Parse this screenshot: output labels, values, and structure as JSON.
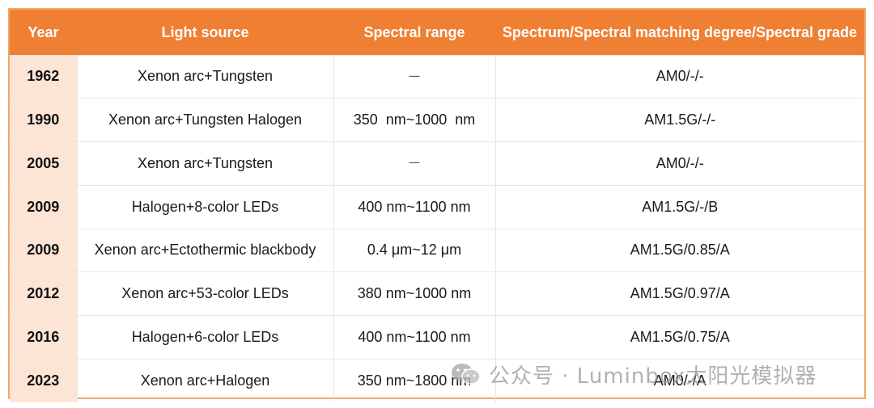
{
  "table": {
    "headers": {
      "year": "Year",
      "light_source": "Light source",
      "spectral_range": "Spectral range",
      "spectrum": "Spectrum/Spectral matching degree/Spectral grade"
    },
    "rows": [
      {
        "year": "1962",
        "light_source": "Xenon arc+Tungsten",
        "spectral_range": "一",
        "spectrum": "AM0/-/-"
      },
      {
        "year": "1990",
        "light_source": "Xenon arc+Tungsten Halogen",
        "spectral_range": "350  nm~1000  nm",
        "spectrum": "AM1.5G/-/-"
      },
      {
        "year": "2005",
        "light_source": "Xenon arc+Tungsten",
        "spectral_range": "一",
        "spectrum": "AM0/-/-"
      },
      {
        "year": "2009",
        "light_source": "Halogen+8-color LEDs",
        "spectral_range": "400 nm~1100 nm",
        "spectrum": "AM1.5G/-/B"
      },
      {
        "year": "2009",
        "light_source": "Xenon arc+Ectothermic blackbody",
        "spectral_range": "0.4 μm~12 μm",
        "spectrum": "AM1.5G/0.85/A"
      },
      {
        "year": "2012",
        "light_source": "Xenon arc+53-color LEDs",
        "spectral_range": "380 nm~1000 nm",
        "spectrum": "AM1.5G/0.97/A"
      },
      {
        "year": "2016",
        "light_source": "Halogen+6-color LEDs",
        "spectral_range": "400 nm~1100 nm",
        "spectrum": "AM1.5G/0.75/A"
      },
      {
        "year": "2023",
        "light_source": "Xenon arc+Halogen",
        "spectral_range": "350 nm~1800 nm",
        "spectrum": "AM0/-/A"
      }
    ]
  },
  "watermark": {
    "icon": "wechat-icon",
    "text": "公众号 · Luminbox太阳光模拟器"
  },
  "colors": {
    "header_bg": "#ef7f33",
    "year_bg": "#fde5d6",
    "border": "#f0a868"
  }
}
